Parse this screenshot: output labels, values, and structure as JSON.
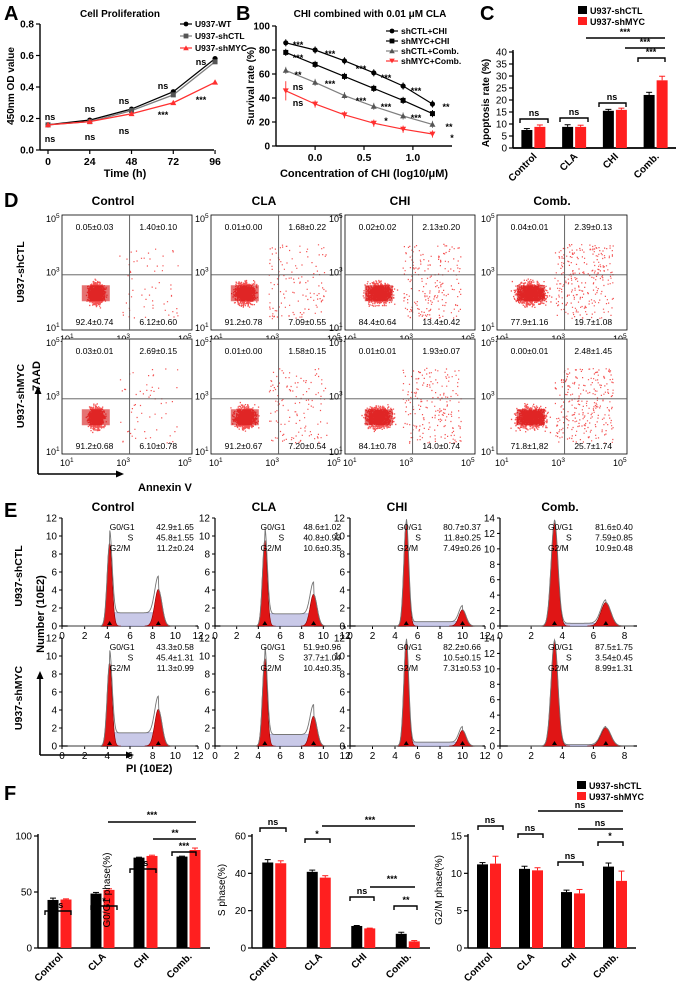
{
  "labels": {
    "A": "A",
    "B": "B",
    "C": "C",
    "D": "D",
    "E": "E",
    "F": "F"
  },
  "panelA": {
    "title": "Cell Proliferation",
    "ylabel": "450nm  OD value",
    "xlabel": "Time (h)",
    "legend": [
      "U937-WT",
      "U937-shCTL",
      "U937-shMYC"
    ],
    "sig": {
      "ns": "ns",
      "stars": "***"
    }
  },
  "panelB": {
    "title": "CHI combined with 0.01 μM CLA",
    "ylabel": "Survival rate (%)",
    "xlabel": "Concentration of CHI (log10/μM)",
    "legend": [
      "shCTL+CHI",
      "shMYC+CHI",
      "shCTL+Comb.",
      "shMYC+Comb."
    ],
    "sig": {
      "s3": "***",
      "s2": "**",
      "s1": "*",
      "ns": "ns"
    }
  },
  "panelC": {
    "ylabel": "Apoptosis rate (%)",
    "legend": [
      "U937-shCTL",
      "U937-shMYC"
    ],
    "sig": {
      "ns": "ns",
      "s3": "***"
    }
  },
  "panelD": {
    "columns": [
      "Control",
      "CLA",
      "CHI",
      "Comb."
    ],
    "rows": [
      "U937-shCTL",
      "U937-shMYC"
    ],
    "yaxis": "7AAD",
    "xaxis": "Annexin V",
    "ticks": {
      "t1": "10",
      "t3": "10",
      "t5": "10",
      "e1": "1",
      "e3": "3",
      "e5": "5"
    },
    "plots": [
      [
        "0.05±0.03",
        "1.40±0.10",
        "92.4±0.74",
        "6.12±0.60"
      ],
      [
        "0.01±0.00",
        "1.68±0.22",
        "91.2±0.78",
        "7.09±0.55"
      ],
      [
        "0.02±0.02",
        "2.13±0.20",
        "84.4±0.64",
        "13.4±0.42"
      ],
      [
        "0.04±0.01",
        "2.39±0.13",
        "77.9±1.16",
        "19.7±1.08"
      ],
      [
        "0.03±0.01",
        "2.69±0.15",
        "91.2±0.68",
        "6.10±0.78"
      ],
      [
        "0.01±0.00",
        "1.58±0.15",
        "91.2±0.67",
        "7.20±0.54"
      ],
      [
        "0.01±0.01",
        "1.93±0.07",
        "84.1±0.78",
        "14.0±0.74"
      ],
      [
        "0.00±0.01",
        "2.48±1.45",
        "71.8±1,82",
        "25.7±1.74"
      ]
    ]
  },
  "panelE": {
    "columns": [
      "Control",
      "CLA",
      "CHI",
      "Comb."
    ],
    "rows": [
      "U937-shCTL",
      "U937-shMYC"
    ],
    "yaxis": "Number (10E2)",
    "xaxis": "PI (10E2)",
    "phase_labels": [
      "G0/G1",
      "S",
      "G2/M"
    ],
    "plots": [
      [
        "42.9±1.65",
        "45.8±1.55",
        "11.2±0.24"
      ],
      [
        "48.6±1.02",
        "40.8±0.93",
        "10.6±0.35"
      ],
      [
        "80.7±0.37",
        "11.8±0.25",
        "7.49±0.26"
      ],
      [
        "81.6±0.40",
        "7.59±0.85",
        "10.9±0.48"
      ],
      [
        "43.3±0.58",
        "45.4±1.31",
        "11.3±0.99"
      ],
      [
        "51.9±0.96",
        "37.7±1.04",
        "10.4±0.35"
      ],
      [
        "82.2±0.66",
        "10.5±0.15",
        "7.31±0.53"
      ],
      [
        "87.5±1.75",
        "3.54±0.45",
        "8.99±1.31"
      ]
    ]
  },
  "panelF": {
    "legend": [
      "U937-shCTL",
      "U937-shMYC"
    ],
    "sig": {
      "ns": "ns",
      "s1": "*",
      "s2": "**",
      "s3": "***"
    }
  },
  "chart_data": [
    {
      "type": "line",
      "title": "Cell Proliferation",
      "xlabel": "Time (h)",
      "ylabel": "450nm  OD value",
      "x": [
        0,
        24,
        48,
        72,
        96
      ],
      "xlim": [
        0,
        100
      ],
      "ylim": [
        0,
        0.8
      ],
      "xticks": [
        "0",
        "24",
        "48",
        "72",
        "96"
      ],
      "yticks": [
        "0.0",
        "0.2",
        "0.4",
        "0.6",
        "0.8"
      ],
      "series": [
        {
          "name": "U937-WT",
          "values": [
            0.16,
            0.19,
            0.26,
            0.37,
            0.58
          ],
          "color": "#000000"
        },
        {
          "name": "U937-shCTL",
          "values": [
            0.16,
            0.18,
            0.25,
            0.35,
            0.56
          ],
          "color": "#7f7f7f"
        },
        {
          "name": "U937-shMYC",
          "values": [
            0.16,
            0.18,
            0.23,
            0.3,
            0.43
          ],
          "color": "#ff3030"
        }
      ]
    },
    {
      "type": "line",
      "title": "CHI combined with 0.01 μM CLA",
      "xlabel": "Concentration of CHI (log10/μM)",
      "ylabel": "Survival rate (%)",
      "x": [
        -0.3,
        0.0,
        0.3,
        0.6,
        0.9,
        1.2
      ],
      "xlim": [
        -0.4,
        1.4
      ],
      "ylim": [
        0,
        100
      ],
      "xticks": [
        "0.0",
        "0.5",
        "1.0"
      ],
      "yticks": [
        "0",
        "20",
        "40",
        "60",
        "80",
        "100"
      ],
      "series": [
        {
          "name": "shCTL+CHI",
          "values": [
            86,
            80,
            71,
            61,
            50,
            35
          ],
          "color": "#000000"
        },
        {
          "name": "shMYC+CHI",
          "values": [
            78,
            68,
            58,
            48,
            38,
            27
          ],
          "color": "#000000"
        },
        {
          "name": "shCTL+Comb.",
          "values": [
            63,
            53,
            42,
            33,
            25,
            18
          ],
          "color": "#7f7f7f"
        },
        {
          "name": "shMYC+Comb.",
          "values": [
            46,
            35,
            26,
            19,
            14,
            10
          ],
          "color": "#ff3030"
        }
      ]
    },
    {
      "type": "bar",
      "ylabel": "Apoptosis rate (%)",
      "categories": [
        "Control",
        "CLA",
        "CHI",
        "Comb."
      ],
      "ylim": [
        0,
        40
      ],
      "yticks": [
        "0",
        "5",
        "10",
        "15",
        "20",
        "25",
        "30",
        "35",
        "40"
      ],
      "series": [
        {
          "name": "U937-shCTL",
          "values": [
            7.5,
            8.8,
            15.5,
            22.1
          ],
          "errors": [
            0.6,
            0.9,
            0.6,
            1.1
          ],
          "color": "#000000"
        },
        {
          "name": "U937-shMYC",
          "values": [
            8.8,
            8.8,
            15.9,
            28.2
          ],
          "errors": [
            0.8,
            0.7,
            0.7,
            1.7
          ],
          "color": "#ff1f1f"
        }
      ]
    },
    {
      "type": "bar",
      "ylabel": "G0/G1 phase(%)",
      "categories": [
        "Control",
        "CLA",
        "CHI",
        "Comb."
      ],
      "ylim": [
        0,
        100
      ],
      "yticks": [
        "0",
        "50",
        "100"
      ],
      "series": [
        {
          "name": "U937-shCTL",
          "values": [
            42.9,
            48.6,
            80.7,
            81.6
          ],
          "errors": [
            1.65,
            1.02,
            0.37,
            0.4
          ],
          "color": "#000000"
        },
        {
          "name": "U937-shMYC",
          "values": [
            43.3,
            51.9,
            82.2,
            87.5
          ],
          "errors": [
            0.58,
            0.96,
            0.66,
            1.75
          ],
          "color": "#ff1f1f"
        }
      ]
    },
    {
      "type": "bar",
      "ylabel": "S phase(%)",
      "categories": [
        "Control",
        "CLA",
        "CHI",
        "Comb."
      ],
      "ylim": [
        0,
        60
      ],
      "yticks": [
        "0",
        "20",
        "40",
        "60"
      ],
      "series": [
        {
          "name": "U937-shCTL",
          "values": [
            45.8,
            40.8,
            11.8,
            7.59
          ],
          "errors": [
            1.55,
            0.93,
            0.25,
            0.85
          ],
          "color": "#000000"
        },
        {
          "name": "U937-shMYC",
          "values": [
            45.4,
            37.7,
            10.5,
            3.54
          ],
          "errors": [
            1.31,
            1.04,
            0.15,
            0.45
          ],
          "color": "#ff1f1f"
        }
      ]
    },
    {
      "type": "bar",
      "ylabel": "G2/M phase(%)",
      "categories": [
        "Control",
        "CLA",
        "CHI",
        "Comb."
      ],
      "ylim": [
        0,
        15
      ],
      "yticks": [
        "0",
        "5",
        "10",
        "15"
      ],
      "series": [
        {
          "name": "U937-shCTL",
          "values": [
            11.2,
            10.6,
            7.49,
            10.9
          ],
          "errors": [
            0.24,
            0.35,
            0.26,
            0.48
          ],
          "color": "#000000"
        },
        {
          "name": "U937-shMYC",
          "values": [
            11.3,
            10.4,
            7.31,
            8.99
          ],
          "errors": [
            0.99,
            0.35,
            0.53,
            1.31
          ],
          "color": "#ff1f1f"
        }
      ]
    }
  ]
}
